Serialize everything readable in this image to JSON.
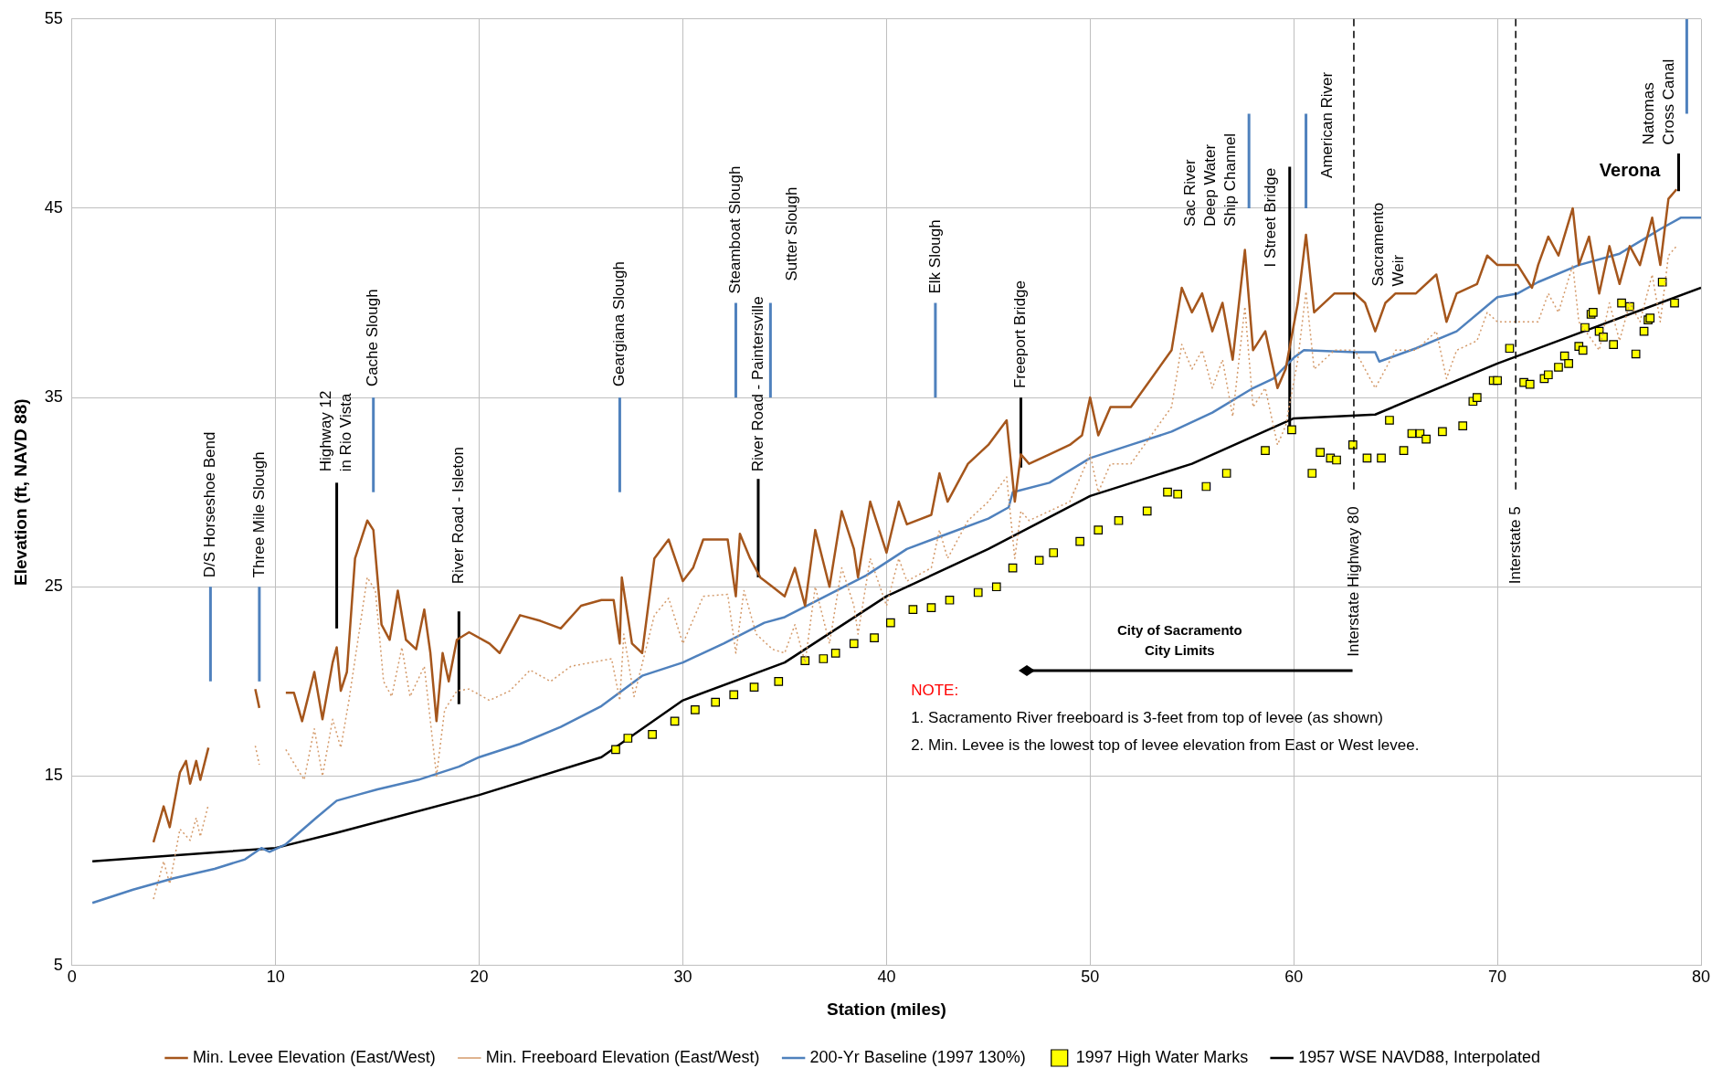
{
  "chart_data": {
    "type": "line",
    "xlabel": "Station (miles)",
    "ylabel": "Elevation (ft, NAVD 88)",
    "xlim": [
      0,
      80
    ],
    "xticks": [
      0,
      10,
      20,
      30,
      40,
      50,
      60,
      70,
      80
    ],
    "ylim": [
      5,
      55
    ],
    "yticks": [
      5,
      15,
      25,
      35,
      45,
      55
    ],
    "grid": true,
    "legend": "bottom",
    "series": [
      {
        "name": "Min. Levee Elevation (East/West)",
        "type": "line",
        "line_style": "solid",
        "color": "#a5561c",
        "x": [
          4.0,
          4.5,
          4.8,
          5.3,
          5.6,
          5.8,
          6.1,
          6.3,
          6.7,
          7.5,
          9.0,
          9.2,
          10.0,
          10.5,
          10.9,
          11.3,
          11.9,
          12.3,
          12.8,
          13.0,
          13.2,
          13.5,
          13.9,
          14.5,
          14.8,
          15.2,
          15.6,
          16.0,
          16.4,
          16.9,
          17.3,
          17.6,
          17.9,
          18.2,
          18.5,
          18.9,
          19.5,
          20.5,
          21,
          22,
          23,
          24,
          25,
          26,
          26.6,
          26.9,
          27.0,
          27.5,
          28,
          28.6,
          29.3,
          30,
          30.5,
          31,
          32.2,
          32.6,
          32.8,
          33.3,
          33.8,
          34.4,
          35,
          35.5,
          36,
          36.5,
          37.2,
          37.8,
          38.4,
          38.6,
          39.2,
          40,
          40.6,
          41,
          42.2,
          42.6,
          43,
          44,
          45,
          45.9,
          46.3,
          46.6,
          47,
          48,
          49,
          49.6,
          50,
          50.4,
          51,
          52,
          53,
          54,
          54.5,
          55,
          55.5,
          56,
          56.5,
          57,
          57.6,
          58,
          58.6,
          59.2,
          59.6,
          60.2,
          60.6,
          61,
          62,
          63,
          63.5,
          64,
          64.5,
          65,
          66,
          67,
          67.5,
          68,
          69,
          69.5,
          70,
          71,
          71.7,
          72,
          72.5,
          73,
          73.7,
          74,
          74.5,
          75,
          75.5,
          76,
          76.5,
          77,
          77.6,
          78,
          78.4,
          78.8
        ],
        "values": [
          11.5,
          13.4,
          12.3,
          15.2,
          15.8,
          14.6,
          15.8,
          14.8,
          16.5,
          null,
          19.6,
          18.6,
          null,
          19.4,
          19.4,
          17.9,
          20.5,
          18.0,
          21.0,
          21.8,
          19.5,
          20.5,
          26.5,
          28.5,
          28.0,
          23.0,
          22.2,
          24.8,
          22.2,
          21.7,
          23.8,
          21.5,
          17.9,
          21.5,
          20.0,
          22.2,
          22.6,
          22.0,
          21.5,
          23.5,
          23.2,
          22.8,
          24.0,
          24.3,
          24.3,
          22.0,
          25.5,
          22.0,
          21.5,
          26.5,
          27.5,
          25.3,
          26.0,
          27.5,
          27.5,
          24.5,
          27.8,
          26.5,
          25.5,
          25.0,
          24.5,
          26.0,
          24.0,
          28.0,
          25.0,
          29.0,
          27.0,
          25.5,
          29.5,
          26.8,
          29.5,
          28.3,
          28.8,
          31.0,
          29.5,
          31.5,
          32.5,
          33.8,
          29.5,
          32.0,
          31.5,
          32.0,
          32.5,
          33.0,
          35.0,
          33.0,
          34.5,
          34.5,
          36.0,
          37.5,
          40.8,
          39.5,
          40.5,
          38.5,
          40.0,
          37.0,
          42.8,
          37.5,
          38.5,
          35.5,
          36.5,
          40.0,
          43.6,
          39.5,
          40.5,
          40.5,
          40.0,
          38.5,
          40.0,
          40.5,
          40.5,
          41.5,
          39.0,
          40.5,
          41.0,
          42.5,
          42.0,
          42.0,
          40.8,
          42.0,
          43.5,
          42.5,
          45.0,
          42.0,
          43.5,
          40.5,
          43.0,
          41.0,
          43.0,
          42.0,
          44.5,
          42.0,
          45.5,
          46.0
        ]
      },
      {
        "name": "Min. Freeboard Elevation (East/West)",
        "type": "line",
        "line_style": "dotted",
        "color": "#d49a6a",
        "x": [
          4.0,
          4.5,
          4.8,
          5.3,
          5.8,
          6.1,
          6.3,
          6.7,
          7.5,
          9.0,
          9.2,
          10.0,
          10.5,
          11,
          11.4,
          11.9,
          12.3,
          12.8,
          13.2,
          13.6,
          14.5,
          14.9,
          15.3,
          15.7,
          16.2,
          16.6,
          17.3,
          17.9,
          18.3,
          18.9,
          19.5,
          20.5,
          21.5,
          22.5,
          23.5,
          24.5,
          25.5,
          26.5,
          26.9,
          27.1,
          27.6,
          28.6,
          29.3,
          30,
          31,
          32.2,
          32.6,
          33,
          33.6,
          34.4,
          35,
          35.5,
          36,
          36.5,
          37.2,
          37.8,
          38.4,
          38.6,
          39.2,
          40,
          40.6,
          41,
          42.2,
          42.6,
          43,
          44,
          45,
          45.9,
          46.3,
          46.6,
          47,
          48,
          49,
          50,
          50.4,
          51,
          52,
          53,
          54,
          54.5,
          55,
          55.5,
          56,
          56.5,
          57,
          57.6,
          58,
          58.6,
          59.2,
          59.6,
          60.2,
          60.6,
          61,
          62,
          63,
          64,
          65,
          66,
          67,
          67.5,
          68,
          69,
          69.5,
          70,
          71,
          72,
          72.5,
          73,
          73.7,
          74,
          75,
          75.5,
          76,
          76.5,
          77,
          77.6,
          78,
          78.4,
          78.8
        ],
        "values": [
          8.5,
          10.5,
          9.3,
          12.2,
          11.6,
          12.8,
          11.8,
          13.5,
          null,
          16.6,
          15.6,
          null,
          16.4,
          15.5,
          14.8,
          17.5,
          15.0,
          18.0,
          16.5,
          19.0,
          25.5,
          24.8,
          20.0,
          19.2,
          21.8,
          19.2,
          20.8,
          15.0,
          18.5,
          19.5,
          19.6,
          19.0,
          19.5,
          20.6,
          20.0,
          20.8,
          21.0,
          21.2,
          19.0,
          22.5,
          19.2,
          23.5,
          24.4,
          22.0,
          24.5,
          24.6,
          21.5,
          24.8,
          22.5,
          21.7,
          21.5,
          23.0,
          21.0,
          25.0,
          22.0,
          26.0,
          24.0,
          22.5,
          26.5,
          24.0,
          26.5,
          25.3,
          26.0,
          28.0,
          26.5,
          28.5,
          29.5,
          30.8,
          26.5,
          29.0,
          28.5,
          29.0,
          29.5,
          32.0,
          30.0,
          31.5,
          31.5,
          33.0,
          34.5,
          37.8,
          36.5,
          37.5,
          35.5,
          37.0,
          34.0,
          39.8,
          34.5,
          35.5,
          32.5,
          33.5,
          37.0,
          40.6,
          36.5,
          37.5,
          37.5,
          35.5,
          37.5,
          37.5,
          38.5,
          36.0,
          37.5,
          38.0,
          39.5,
          39.0,
          39.0,
          39.0,
          40.5,
          39.5,
          42.0,
          39.0,
          37.5,
          40.0,
          38.0,
          40.0,
          39.0,
          41.5,
          39.0,
          42.5,
          43.0
        ]
      },
      {
        "name": "200-Yr Baseline (1997 130%)",
        "type": "line",
        "line_style": "solid",
        "color": "#4f81bd",
        "x": [
          1,
          3,
          5,
          7,
          8.5,
          9.3,
          9.7,
          10.5,
          12,
          13,
          14,
          15,
          17,
          19,
          20,
          22,
          24,
          26,
          27,
          28,
          30,
          32,
          34,
          35,
          37,
          39,
          41,
          43,
          45,
          46,
          46.2,
          48,
          50,
          52,
          54,
          56,
          58,
          59,
          60,
          60.5,
          63,
          64,
          64.2,
          66,
          68,
          70,
          71,
          72,
          74,
          76,
          78,
          79,
          80
        ],
        "values": [
          8.3,
          9.0,
          9.6,
          10.1,
          10.6,
          11.2,
          11.0,
          11.4,
          12.8,
          13.7,
          14.0,
          14.3,
          14.8,
          15.5,
          16.0,
          16.7,
          17.6,
          18.7,
          19.5,
          20.3,
          21.0,
          22.0,
          23.1,
          23.4,
          24.5,
          25.6,
          27.0,
          27.8,
          28.6,
          29.2,
          30.0,
          30.5,
          31.8,
          32.5,
          33.2,
          34.2,
          35.5,
          36.0,
          37.1,
          37.5,
          37.4,
          37.4,
          36.9,
          37.6,
          38.5,
          40.3,
          40.5,
          41.1,
          42.0,
          42.6,
          43.9,
          44.5,
          44.5
        ]
      },
      {
        "name": "1997 High Water Marks",
        "type": "scatter",
        "marker": "square",
        "color": "#ffff00",
        "x": [
          26.7,
          27.3,
          28.5,
          29.6,
          30.6,
          31.6,
          32.5,
          33.5,
          34.7,
          36.0,
          36.9,
          37.5,
          38.4,
          39.4,
          40.2,
          41.3,
          42.2,
          43.1,
          44.5,
          45.4,
          46.2,
          47.5,
          48.2,
          49.5,
          50.4,
          51.4,
          52.8,
          53.8,
          54.3,
          55.7,
          56.7,
          58.6,
          59.9,
          60.9,
          61.3,
          61.8,
          62.1,
          62.9,
          63.6,
          64.3,
          64.7,
          65.4,
          65.8,
          66.2,
          66.5,
          67.3,
          68.3,
          68.8,
          69.0,
          69.8,
          70.0,
          70.6,
          71.3,
          71.6,
          72.3,
          72.5,
          73.0,
          73.3,
          73.5,
          74.0,
          74.2,
          74.3,
          74.6,
          74.7,
          75.0,
          75.2,
          75.7,
          76.1,
          76.5,
          76.8,
          77.2,
          77.4,
          77.5,
          78.1,
          78.7
        ],
        "values": [
          16.4,
          17.0,
          17.2,
          17.9,
          18.5,
          18.9,
          19.3,
          19.7,
          20.0,
          21.1,
          21.2,
          21.5,
          22.0,
          22.3,
          23.1,
          23.8,
          23.9,
          24.3,
          24.7,
          25.0,
          26.0,
          26.4,
          26.8,
          27.4,
          28.0,
          28.5,
          29.0,
          30.0,
          29.9,
          30.3,
          31.0,
          32.2,
          33.3,
          31.0,
          32.1,
          31.8,
          31.7,
          32.5,
          31.8,
          31.8,
          33.8,
          32.2,
          33.1,
          33.1,
          32.8,
          33.2,
          33.5,
          34.8,
          35.0,
          35.9,
          35.9,
          37.6,
          35.8,
          35.7,
          36.0,
          36.2,
          36.6,
          37.2,
          36.8,
          37.7,
          37.5,
          38.7,
          39.4,
          39.5,
          38.5,
          38.2,
          37.8,
          40.0,
          39.8,
          37.3,
          38.5,
          39.1,
          39.2,
          41.1,
          40.0
        ]
      },
      {
        "name": "1957 WSE NAVD88, Interpolated",
        "type": "line",
        "line_style": "solid",
        "color": "#000000",
        "x": [
          1,
          10,
          13,
          20,
          26,
          30,
          35,
          40,
          45,
          50,
          55,
          60,
          64,
          70,
          75,
          80
        ],
        "values": [
          10.5,
          11.2,
          12.0,
          14.0,
          16.0,
          19.0,
          21.0,
          24.5,
          27.0,
          29.8,
          31.5,
          33.9,
          34.1,
          36.8,
          38.8,
          40.8
        ]
      },
      {
        "type": "line",
        "color": "#000000",
        "x": [
          13.0,
          13.0
        ],
        "values": [
          22.8,
          30.5
        ]
      },
      {
        "type": "line",
        "color": "#000000",
        "x": [
          19.0,
          19.0
        ],
        "values": [
          18.8,
          23.7
        ]
      },
      {
        "type": "line",
        "color": "#000000",
        "x": [
          33.7,
          33.7
        ],
        "values": [
          25.5,
          30.7
        ]
      },
      {
        "type": "line",
        "color": "#000000",
        "x": [
          46.6,
          46.6
        ],
        "values": [
          31.3,
          35.0
        ]
      },
      {
        "type": "line",
        "color": "#000000",
        "x": [
          59.8,
          59.8
        ],
        "values": [
          33.1,
          47.2
        ]
      },
      {
        "type": "line",
        "color": "#000000",
        "x": [
          78.9,
          78.9
        ],
        "values": [
          45.9,
          47.9
        ]
      },
      {
        "type": "line",
        "color": "#4f81bd",
        "x": [
          6.8,
          6.8
        ],
        "values": [
          20,
          25
        ]
      },
      {
        "type": "line",
        "color": "#4f81bd",
        "x": [
          9.2,
          9.2
        ],
        "values": [
          20,
          25
        ]
      },
      {
        "type": "line",
        "color": "#4f81bd",
        "x": [
          14.8,
          14.8
        ],
        "values": [
          30,
          35
        ]
      },
      {
        "type": "line",
        "color": "#4f81bd",
        "x": [
          26.9,
          26.9
        ],
        "values": [
          30,
          35
        ]
      },
      {
        "type": "line",
        "color": "#4f81bd",
        "x": [
          32.6,
          32.6
        ],
        "values": [
          35,
          40
        ]
      },
      {
        "type": "line",
        "color": "#4f81bd",
        "x": [
          34.3,
          34.3
        ],
        "values": [
          35,
          40
        ]
      },
      {
        "type": "line",
        "color": "#4f81bd",
        "x": [
          42.4,
          42.4
        ],
        "values": [
          35,
          40
        ]
      },
      {
        "type": "line",
        "color": "#4f81bd",
        "x": [
          57.8,
          57.8
        ],
        "values": [
          45,
          50
        ]
      },
      {
        "type": "line",
        "color": "#4f81bd",
        "x": [
          60.6,
          60.6
        ],
        "values": [
          45,
          50
        ]
      },
      {
        "type": "line",
        "color": "#4f81bd",
        "x": [
          79.3,
          79.3
        ],
        "values": [
          50,
          55
        ]
      }
    ],
    "annotations": [
      {
        "text": "D/S Horseshoe Bend",
        "x": 6.8,
        "y": 25
      },
      {
        "text": "Three Mile Slough",
        "x": 9.2,
        "y": 25
      },
      {
        "text": "Highway 12\nin Rio Vista",
        "x": 13.0,
        "y": 30.5
      },
      {
        "text": "Cache Slough",
        "x": 14.8,
        "y": 35
      },
      {
        "text": "River Road - Isleton",
        "x": 19.0,
        "y": 23.7
      },
      {
        "text": "Geargiana Slough",
        "x": 26.9,
        "y": 35
      },
      {
        "text": "Steamboat Slough",
        "x": 32.6,
        "y": 40
      },
      {
        "text": "River Road - Paintersville",
        "x": 33.7,
        "y": 30.7
      },
      {
        "text": "Sutter Slough",
        "x": 34.3,
        "y": 40
      },
      {
        "text": "Elk Slough",
        "x": 42.4,
        "y": 40
      },
      {
        "text": "Freeport Bridge",
        "x": 46.6,
        "y": 35.0
      },
      {
        "text": "Sac River\nDeep Water\nShip Channel",
        "x": 57.8,
        "y": 45
      },
      {
        "text": "I Street Bridge",
        "x": 59.8,
        "y": 47.2
      },
      {
        "text": "American River",
        "x": 60.6,
        "y": 45
      },
      {
        "text": "Sacramento\nWeir",
        "x": 63.5,
        "y": 40.0
      },
      {
        "text": "Verona",
        "x": 78.9,
        "y": 47.9
      },
      {
        "text": "Natomas\nCross Canal",
        "x": 79.3,
        "y": 50
      },
      "City of Sacramento\nCity Limits",
      "NOTE:",
      "1. Sacramento River freeboard is 3-feet from top of levee (as shown)",
      "2. Min. Levee is the lowest top of levee elevation from East or West levee."
    ],
    "ref_lines": [
      {
        "axis": "x",
        "value": 62.95,
        "label": "Interstate Highway 80",
        "line_style": "dashed",
        "color": "#000000"
      },
      {
        "axis": "x",
        "value": 70.9,
        "label": "Interstate 5",
        "line_style": "dashed",
        "color": "#000000"
      }
    ]
  }
}
